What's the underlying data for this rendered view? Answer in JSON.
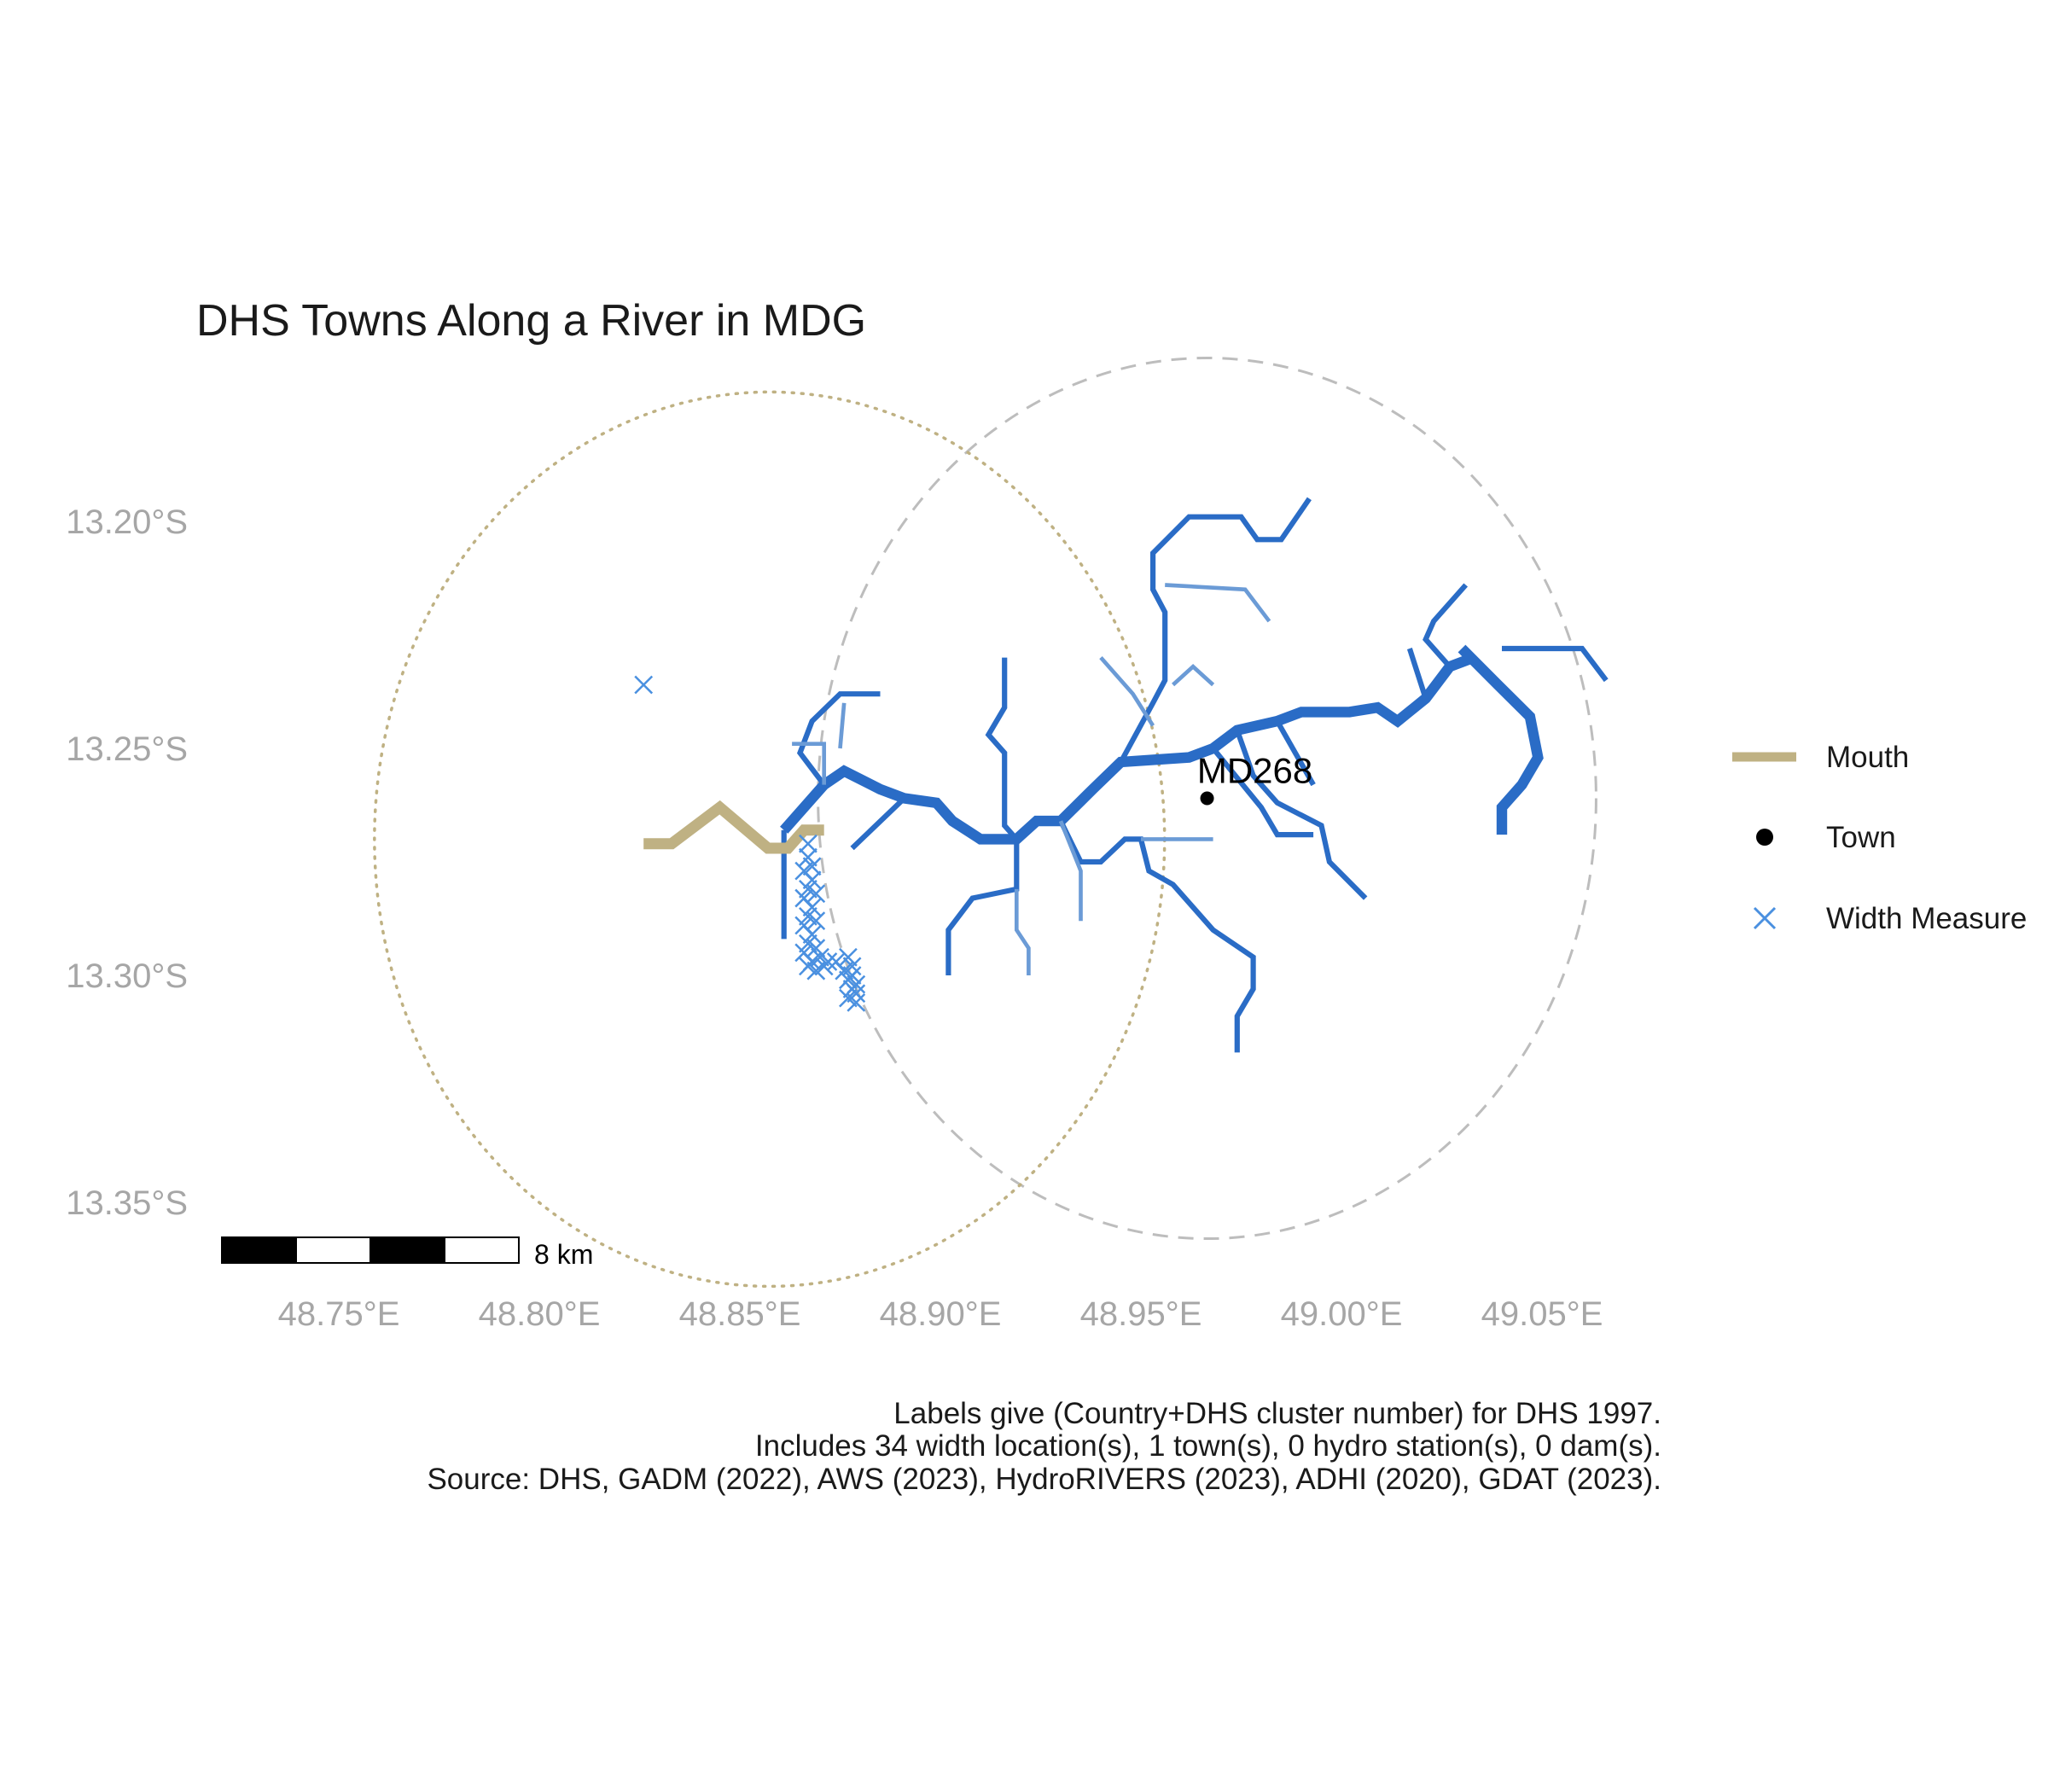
{
  "title": "DHS Towns Along a River in MDG",
  "colors": {
    "river": "#2a6cc6",
    "river_light": "#6b9bd6",
    "mouth": "#bfb183",
    "width_marker": "#4a90e0",
    "town": "#000000",
    "buffer_town": "#bdbdbd",
    "buffer_mouth": "#bfb183",
    "tick_text": "#a6a6a6"
  },
  "axes": {
    "x_ticks": [
      {
        "value": 48.75,
        "label": "48.75°E"
      },
      {
        "value": 48.8,
        "label": "48.80°E"
      },
      {
        "value": 48.85,
        "label": "48.85°E"
      },
      {
        "value": 48.9,
        "label": "48.90°E"
      },
      {
        "value": 48.95,
        "label": "48.95°E"
      },
      {
        "value": 49.0,
        "label": "49.00°E"
      },
      {
        "value": 49.05,
        "label": "49.05°E"
      }
    ],
    "y_ticks": [
      {
        "value": -13.2,
        "label": "13.20°S"
      },
      {
        "value": -13.25,
        "label": "13.25°S"
      },
      {
        "value": -13.3,
        "label": "13.30°S"
      },
      {
        "value": -13.35,
        "label": "13.35°S"
      }
    ]
  },
  "legend": {
    "items": [
      {
        "key": "mouth",
        "label": "Mouth",
        "symbol": "line"
      },
      {
        "key": "town",
        "label": "Town",
        "symbol": "dot"
      },
      {
        "key": "width",
        "label": "Width Measure",
        "symbol": "cross"
      }
    ]
  },
  "towns": [
    {
      "label": "MD268",
      "lon": 48.9665,
      "lat": -13.261
    }
  ],
  "scale_bar": {
    "label": "8 km"
  },
  "caption": [
    "Labels give (Country+DHS cluster number) for DHS 1997.",
    "Includes 34 width location(s), 1 town(s), 0 hydro station(s), 0 dam(s).",
    "Source: DHS, GADM (2022), AWS (2023), HydroRIVERS (2023), ADHI (2020), GDAT (2023)."
  ],
  "buffers": [
    {
      "kind": "town",
      "center_lon": 48.9665,
      "center_lat": -13.261,
      "radius_deg": 0.097,
      "style": "dashed"
    },
    {
      "kind": "mouth",
      "center_lon": 48.8574,
      "center_lat": -13.27,
      "radius_deg": 0.0985,
      "style": "dotted"
    }
  ],
  "mouth_segment": [
    [
      48.826,
      -13.271
    ],
    [
      48.833,
      -13.271
    ],
    [
      48.845,
      -13.263
    ],
    [
      48.857,
      -13.272
    ],
    [
      48.862,
      -13.272
    ],
    [
      48.866,
      -13.268
    ],
    [
      48.871,
      -13.268
    ]
  ],
  "rivers": [
    {
      "w": 8,
      "light": false,
      "coords": [
        [
          48.861,
          -13.268
        ],
        [
          48.871,
          -13.258
        ],
        [
          48.876,
          -13.255
        ],
        [
          48.885,
          -13.259
        ],
        [
          48.891,
          -13.261
        ],
        [
          48.899,
          -13.262
        ],
        [
          48.903,
          -13.266
        ],
        [
          48.91,
          -13.27
        ],
        [
          48.919,
          -13.27
        ],
        [
          48.924,
          -13.266
        ],
        [
          48.93,
          -13.266
        ],
        [
          48.938,
          -13.259
        ],
        [
          48.945,
          -13.253
        ],
        [
          48.962,
          -13.252
        ],
        [
          48.968,
          -13.25
        ],
        [
          48.974,
          -13.246
        ],
        [
          48.984,
          -13.244
        ],
        [
          48.99,
          -13.242
        ],
        [
          49.002,
          -13.242
        ],
        [
          49.009,
          -13.241
        ],
        [
          49.014,
          -13.244
        ],
        [
          49.021,
          -13.239
        ],
        [
          49.027,
          -13.232
        ],
        [
          49.033,
          -13.23
        ]
      ]
    },
    {
      "w": 8,
      "light": false,
      "coords": [
        [
          49.03,
          -13.228
        ],
        [
          49.039,
          -13.236
        ],
        [
          49.047,
          -13.243
        ],
        [
          49.049,
          -13.252
        ],
        [
          49.045,
          -13.258
        ],
        [
          49.04,
          -13.263
        ],
        [
          49.04,
          -13.269
        ]
      ]
    },
    {
      "w": 4,
      "light": false,
      "coords": [
        [
          48.861,
          -13.268
        ],
        [
          48.861,
          -13.292
        ]
      ]
    },
    {
      "w": 4,
      "light": false,
      "coords": [
        [
          48.871,
          -13.258
        ],
        [
          48.865,
          -13.251
        ],
        [
          48.868,
          -13.244
        ],
        [
          48.875,
          -13.238
        ],
        [
          48.885,
          -13.238
        ]
      ]
    },
    {
      "w": 4,
      "light": false,
      "coords": [
        [
          48.891,
          -13.261
        ],
        [
          48.878,
          -13.272
        ]
      ]
    },
    {
      "w": 4,
      "light": false,
      "coords": [
        [
          48.919,
          -13.27
        ],
        [
          48.916,
          -13.267
        ],
        [
          48.916,
          -13.251
        ],
        [
          48.912,
          -13.247
        ],
        [
          48.916,
          -13.241
        ],
        [
          48.916,
          -13.23
        ]
      ]
    },
    {
      "w": 4,
      "light": false,
      "coords": [
        [
          48.919,
          -13.27
        ],
        [
          48.919,
          -13.281
        ],
        [
          48.908,
          -13.283
        ],
        [
          48.902,
          -13.29
        ],
        [
          48.902,
          -13.3
        ]
      ]
    },
    {
      "w": 4,
      "light": false,
      "coords": [
        [
          48.945,
          -13.253
        ],
        [
          48.953,
          -13.24
        ],
        [
          48.956,
          -13.235
        ],
        [
          48.956,
          -13.22
        ],
        [
          48.953,
          -13.215
        ],
        [
          48.953,
          -13.207
        ],
        [
          48.962,
          -13.199
        ],
        [
          48.975,
          -13.199
        ],
        [
          48.979,
          -13.204
        ],
        [
          48.985,
          -13.204
        ],
        [
          48.992,
          -13.195
        ]
      ]
    },
    {
      "w": 4,
      "light": false,
      "coords": [
        [
          48.93,
          -13.266
        ],
        [
          48.935,
          -13.275
        ],
        [
          48.94,
          -13.275
        ],
        [
          48.946,
          -13.27
        ],
        [
          48.95,
          -13.27
        ],
        [
          48.952,
          -13.277
        ],
        [
          48.958,
          -13.28
        ],
        [
          48.968,
          -13.29
        ],
        [
          48.978,
          -13.296
        ],
        [
          48.978,
          -13.303
        ],
        [
          48.974,
          -13.309
        ],
        [
          48.974,
          -13.317
        ]
      ]
    },
    {
      "w": 4,
      "light": false,
      "coords": [
        [
          48.968,
          -13.25
        ],
        [
          48.98,
          -13.263
        ],
        [
          48.984,
          -13.269
        ],
        [
          48.993,
          -13.269
        ]
      ]
    },
    {
      "w": 4,
      "light": false,
      "coords": [
        [
          48.974,
          -13.246
        ],
        [
          48.978,
          -13.256
        ],
        [
          48.984,
          -13.262
        ],
        [
          48.995,
          -13.267
        ],
        [
          48.997,
          -13.275
        ],
        [
          49.006,
          -13.283
        ]
      ]
    },
    {
      "w": 4,
      "light": false,
      "coords": [
        [
          48.984,
          -13.244
        ],
        [
          48.993,
          -13.258
        ]
      ]
    },
    {
      "w": 4,
      "light": false,
      "coords": [
        [
          49.021,
          -13.239
        ],
        [
          49.017,
          -13.228
        ]
      ]
    },
    {
      "w": 4,
      "light": false,
      "coords": [
        [
          49.027,
          -13.232
        ],
        [
          49.021,
          -13.226
        ],
        [
          49.023,
          -13.222
        ],
        [
          49.031,
          -13.214
        ]
      ]
    },
    {
      "w": 4,
      "light": false,
      "coords": [
        [
          49.04,
          -13.228
        ],
        [
          49.06,
          -13.228
        ],
        [
          49.066,
          -13.235
        ]
      ]
    },
    {
      "w": 3,
      "light": true,
      "coords": [
        [
          48.919,
          -13.281
        ],
        [
          48.919,
          -13.29
        ],
        [
          48.922,
          -13.294
        ],
        [
          48.922,
          -13.3
        ]
      ]
    },
    {
      "w": 3,
      "light": true,
      "coords": [
        [
          48.93,
          -13.266
        ],
        [
          48.935,
          -13.277
        ],
        [
          48.935,
          -13.288
        ]
      ]
    },
    {
      "w": 3,
      "light": true,
      "coords": [
        [
          48.95,
          -13.27
        ],
        [
          48.968,
          -13.27
        ]
      ]
    },
    {
      "w": 3,
      "light": true,
      "coords": [
        [
          48.953,
          -13.245
        ],
        [
          48.948,
          -13.238
        ],
        [
          48.94,
          -13.23
        ]
      ]
    },
    {
      "w": 3,
      "light": true,
      "coords": [
        [
          48.958,
          -13.236
        ],
        [
          48.963,
          -13.232
        ],
        [
          48.968,
          -13.236
        ]
      ]
    },
    {
      "w": 3,
      "light": true,
      "coords": [
        [
          48.956,
          -13.214
        ],
        [
          48.976,
          -13.215
        ],
        [
          48.982,
          -13.222
        ]
      ]
    },
    {
      "w": 3,
      "light": true,
      "coords": [
        [
          48.863,
          -13.249
        ],
        [
          48.871,
          -13.249
        ],
        [
          48.871,
          -13.258
        ]
      ]
    },
    {
      "w": 3,
      "light": true,
      "coords": [
        [
          48.876,
          -13.24
        ],
        [
          48.875,
          -13.25
        ]
      ]
    }
  ],
  "width_points": [
    [
      48.826,
      -13.236
    ],
    [
      48.867,
      -13.271
    ],
    [
      48.867,
      -13.274
    ],
    [
      48.868,
      -13.276
    ],
    [
      48.866,
      -13.277
    ],
    [
      48.868,
      -13.279
    ],
    [
      48.867,
      -13.281
    ],
    [
      48.869,
      -13.282
    ],
    [
      48.866,
      -13.283
    ],
    [
      48.868,
      -13.285
    ],
    [
      48.867,
      -13.287
    ],
    [
      48.869,
      -13.288
    ],
    [
      48.866,
      -13.289
    ],
    [
      48.868,
      -13.291
    ],
    [
      48.867,
      -13.293
    ],
    [
      48.869,
      -13.294
    ],
    [
      48.866,
      -13.295
    ],
    [
      48.868,
      -13.297
    ],
    [
      48.87,
      -13.296
    ],
    [
      48.872,
      -13.297
    ],
    [
      48.874,
      -13.297
    ],
    [
      48.877,
      -13.296
    ],
    [
      48.878,
      -13.298
    ],
    [
      48.876,
      -13.299
    ],
    [
      48.878,
      -13.3
    ],
    [
      48.877,
      -13.301
    ],
    [
      48.879,
      -13.302
    ],
    [
      48.878,
      -13.303
    ],
    [
      48.879,
      -13.304
    ],
    [
      48.877,
      -13.305
    ],
    [
      48.879,
      -13.306
    ],
    [
      48.867,
      -13.298
    ],
    [
      48.869,
      -13.299
    ],
    [
      48.871,
      -13.298
    ]
  ]
}
